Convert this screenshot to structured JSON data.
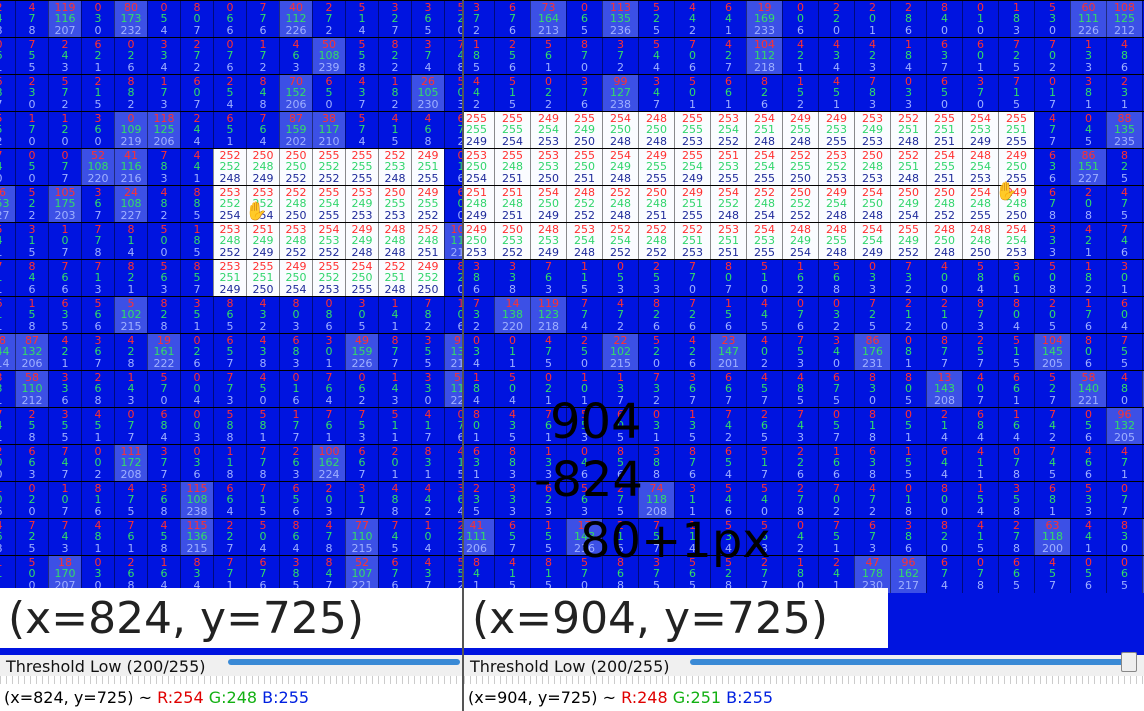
{
  "left": {
    "coords": "(x=824, y=725)",
    "threshold_label": "Threshold Low (200/255)",
    "status_coords": "(x=824, y=725) ~",
    "status_r": "R:254",
    "status_g": "G:248",
    "status_b": "B:255",
    "threshold_fraction": 0.784
  },
  "right": {
    "coords": "(x=904, y=725)",
    "threshold_label": "Threshold Low (200/255)",
    "status_coords": "(x=904, y=725) ~",
    "status_r": "R:248",
    "status_g": "G:251",
    "status_b": "B:255",
    "threshold_fraction": 0.784
  },
  "overlay": {
    "line1": "904",
    "line2": "-824",
    "line3": "80+1px"
  },
  "colors": {
    "pixel_bg": "#0014e0",
    "mid_bg": "#3c50e6",
    "light_bg": "#fafcff",
    "red_text": "#ff3030",
    "green_text": "#31d56c",
    "blue_text": "#1e2a9a"
  },
  "icons": {
    "cursor": "hand-cursor-icon"
  }
}
